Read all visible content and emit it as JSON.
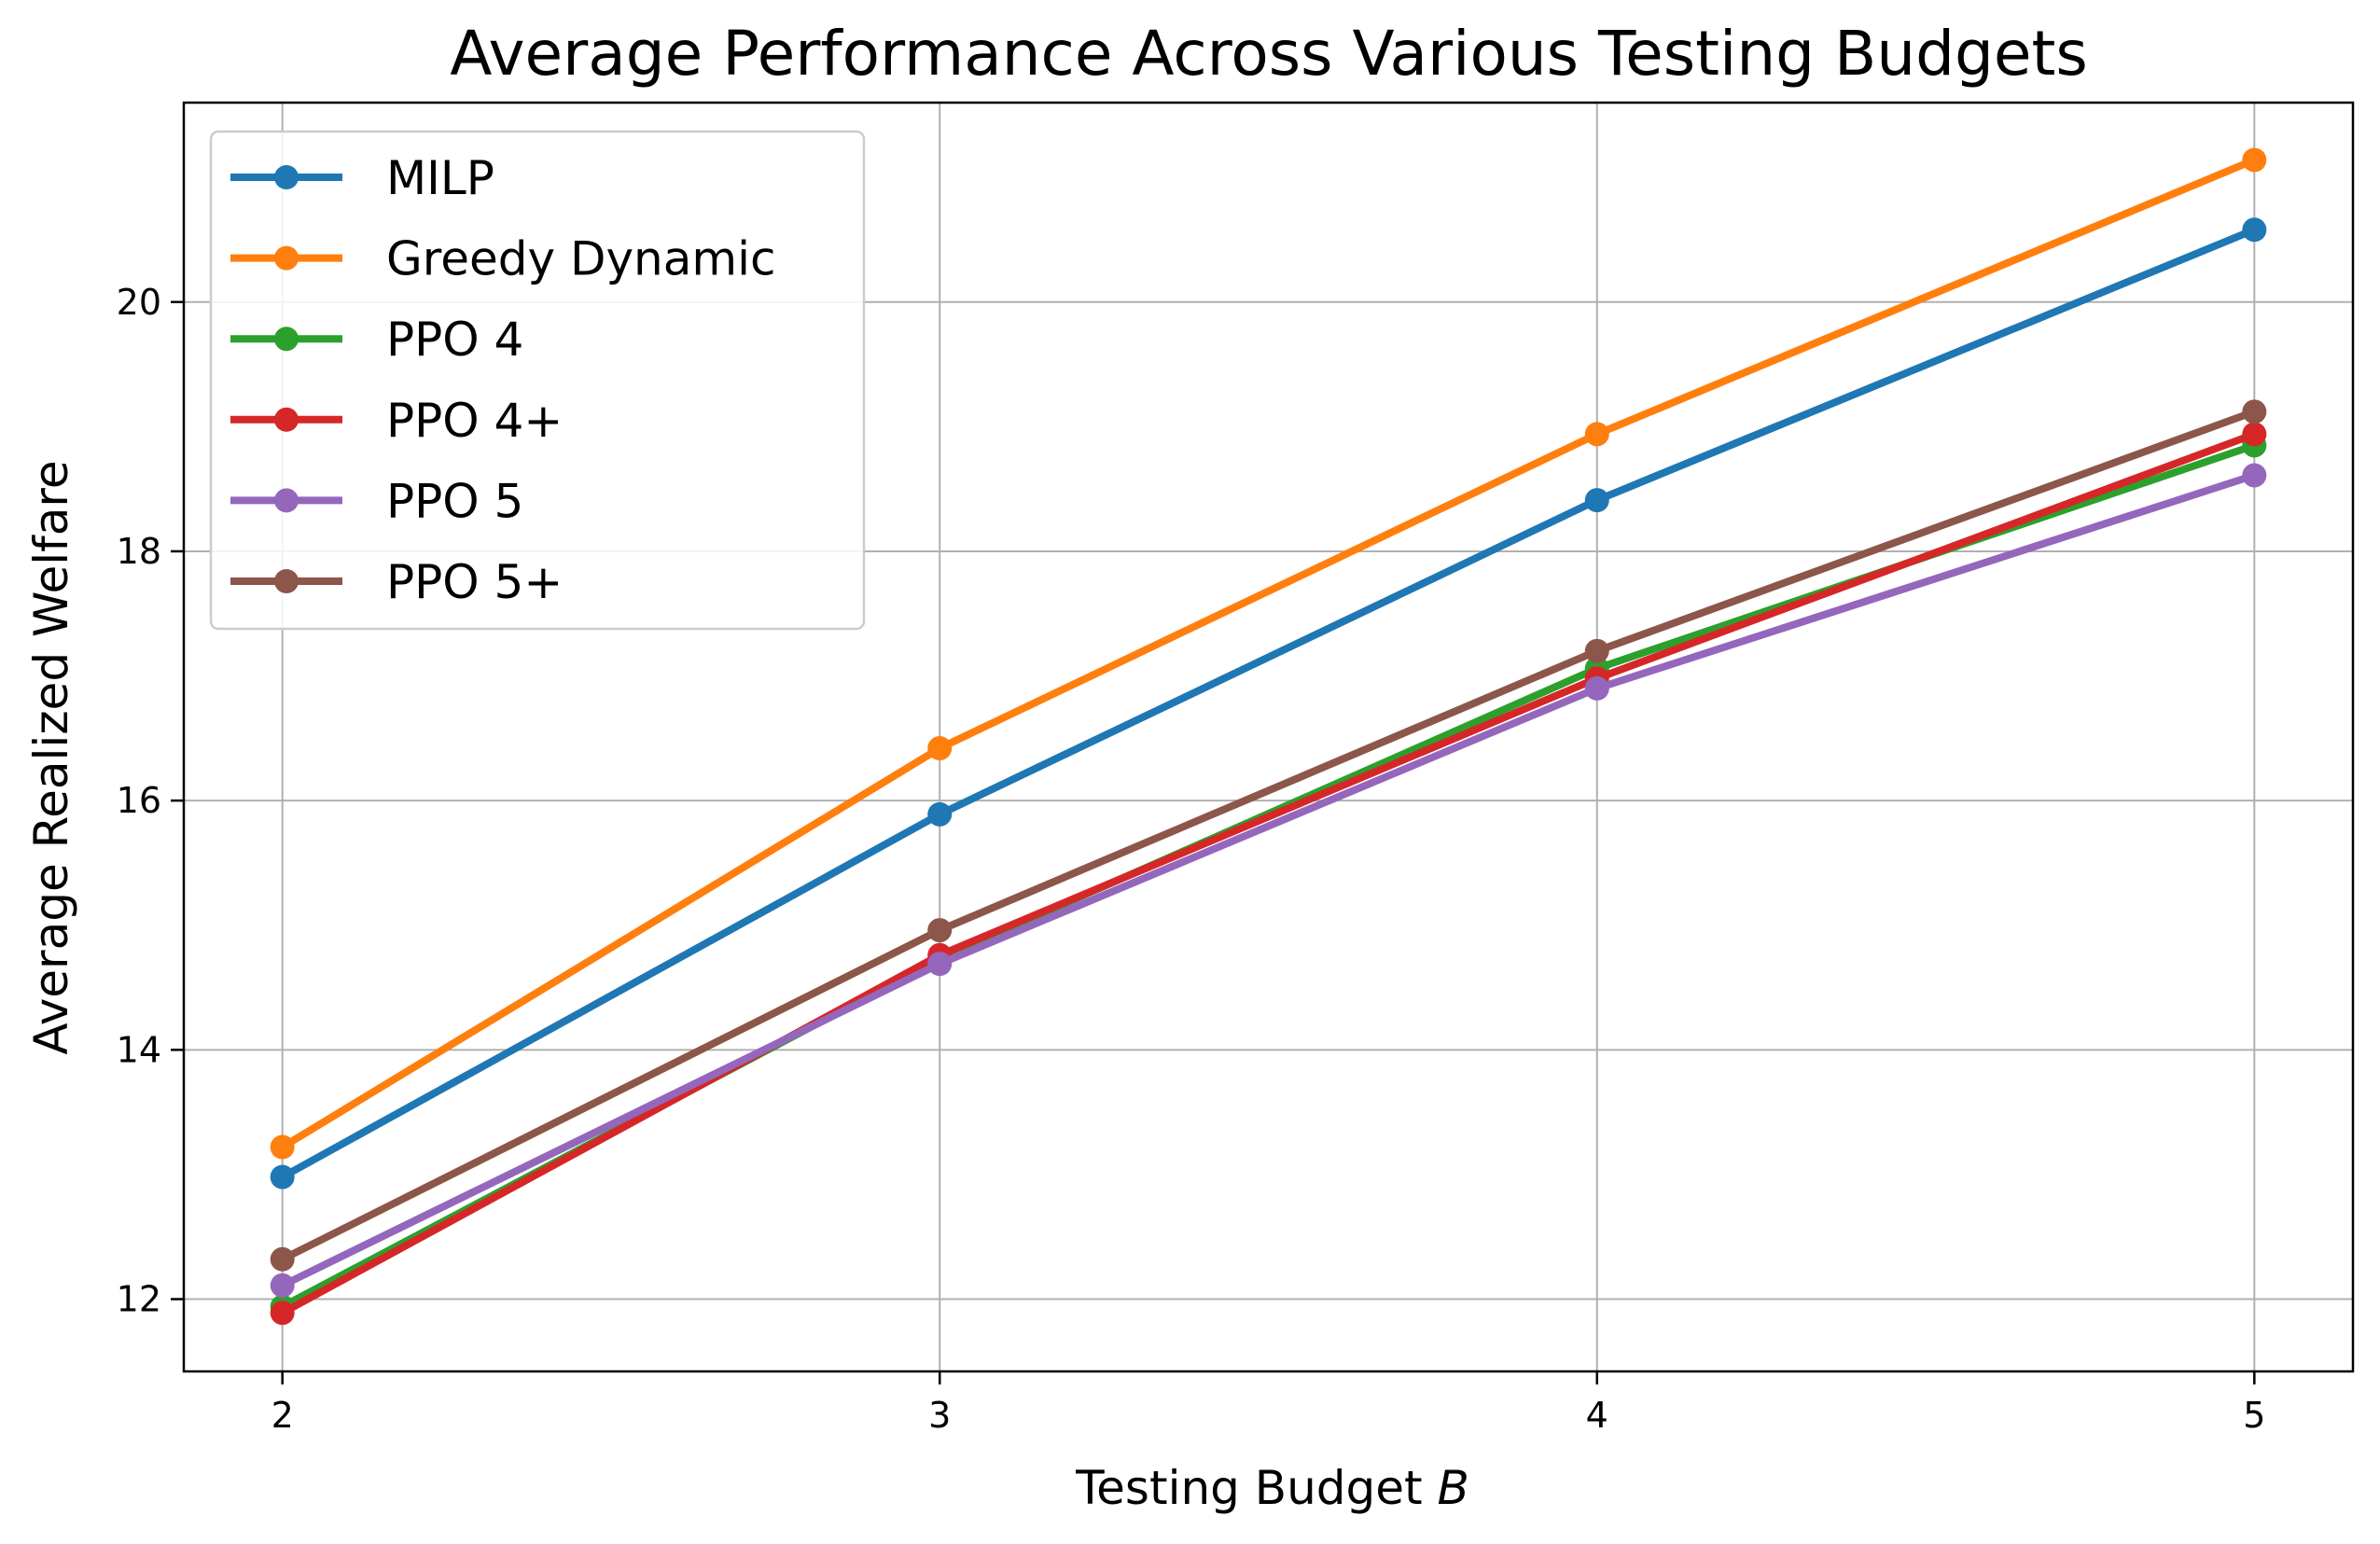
{
  "chart_data": {
    "type": "line",
    "title": "Average Performance Across Various Testing Budgets",
    "xlabel": "Testing Budget",
    "xlabel_var": "B",
    "ylabel": "Average Realized Welfare",
    "x": [
      2,
      3,
      4,
      5
    ],
    "x_ticks": [
      "2",
      "3",
      "4",
      "5"
    ],
    "y_ticks": [
      "12",
      "14",
      "16",
      "18",
      "20"
    ],
    "xlim": [
      1.85,
      5.15
    ],
    "ylim": [
      11.42,
      21.6
    ],
    "grid": true,
    "legend_position": "top-left",
    "series": [
      {
        "name": "MILP",
        "color": "#1f77b4",
        "values": [
          12.98,
          15.89,
          18.41,
          20.58
        ]
      },
      {
        "name": "Greedy Dynamic",
        "color": "#ff7f0e",
        "values": [
          13.22,
          16.42,
          18.94,
          21.14
        ]
      },
      {
        "name": "PPO 4",
        "color": "#2ca02c",
        "values": [
          11.94,
          14.73,
          17.06,
          18.85
        ]
      },
      {
        "name": "PPO 4+",
        "color": "#d62728",
        "values": [
          11.89,
          14.76,
          16.98,
          18.94
        ]
      },
      {
        "name": "PPO 5",
        "color": "#9467bd",
        "values": [
          12.11,
          14.69,
          16.9,
          18.61
        ]
      },
      {
        "name": "PPO 5+",
        "color": "#8c564b",
        "values": [
          12.32,
          14.96,
          17.2,
          19.12
        ]
      }
    ]
  }
}
